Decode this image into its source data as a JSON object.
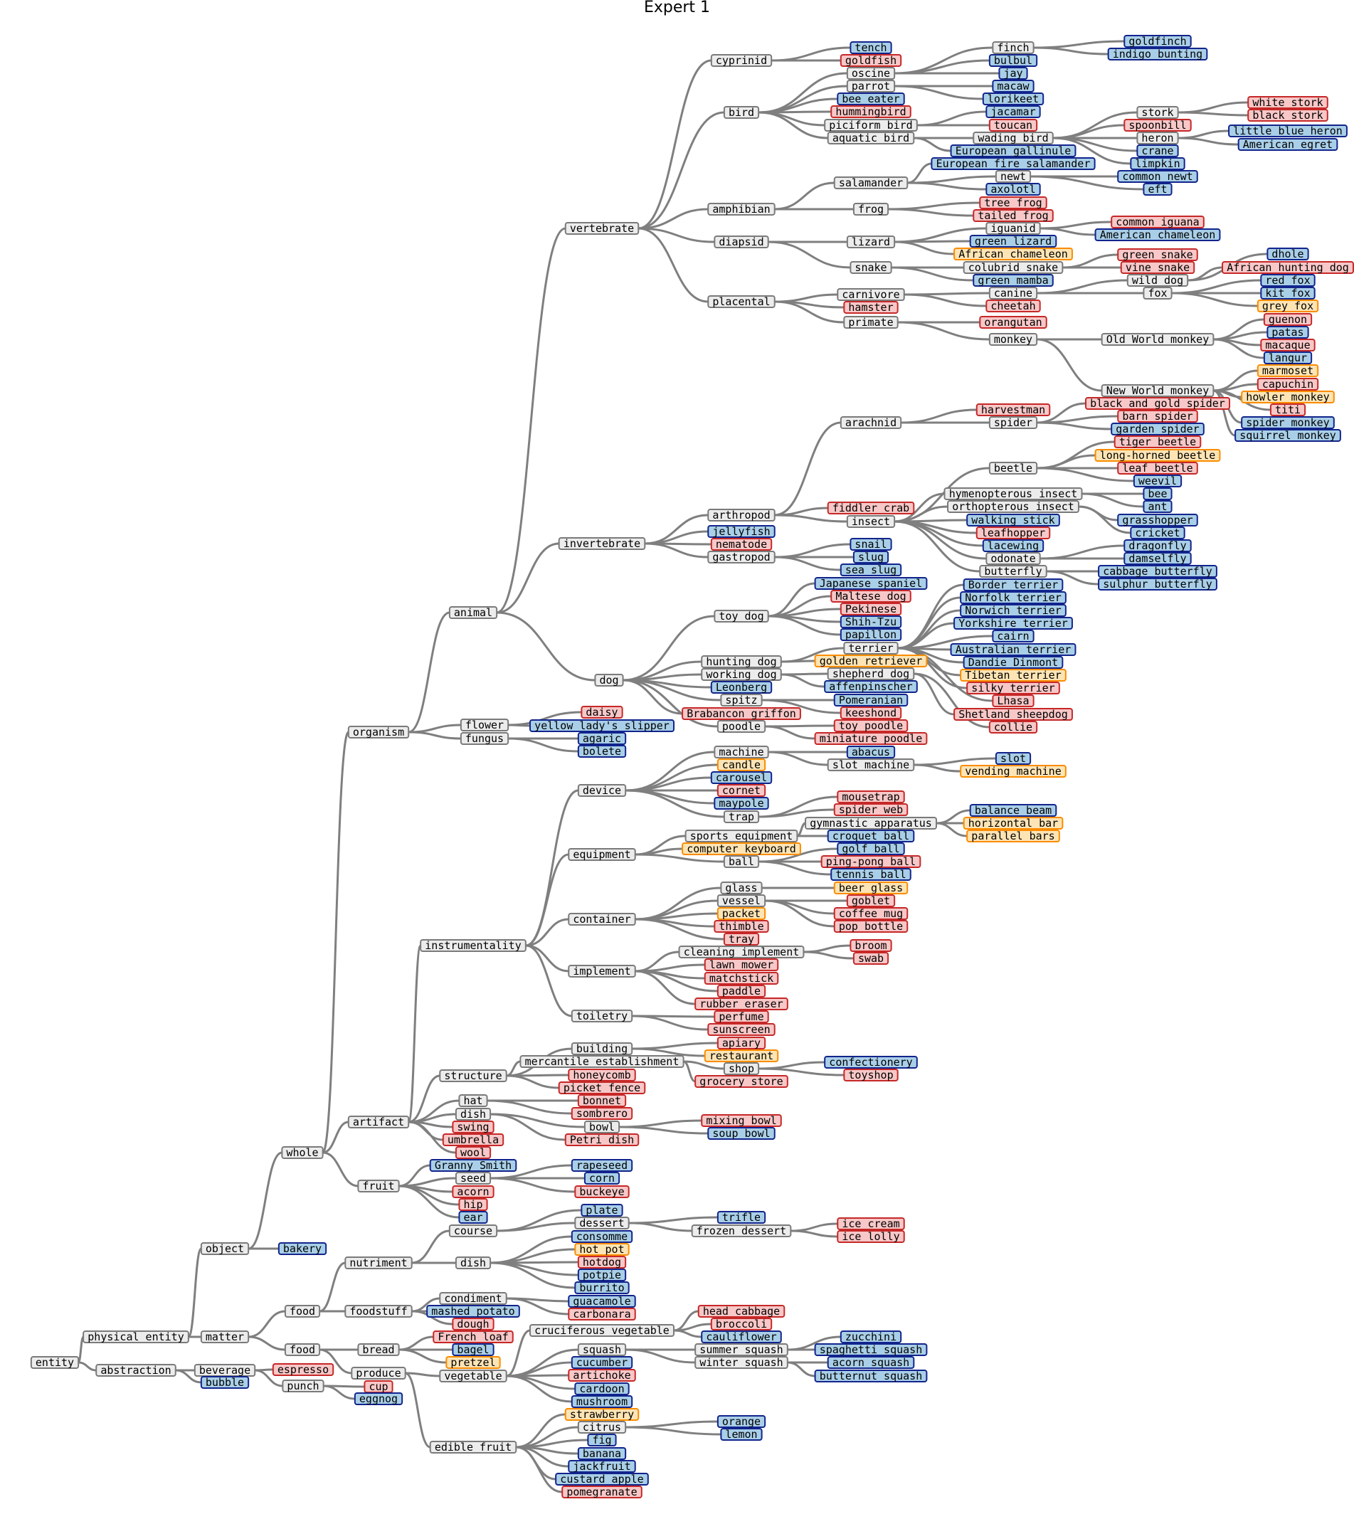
{
  "title": "Expert 1",
  "styles": {
    "internal": {
      "fill": "#ececec",
      "stroke": "#7a7a7a"
    },
    "blue": {
      "fill": "#a9cfe8",
      "stroke": "#12248c"
    },
    "red": {
      "fill": "#f8c7c7",
      "stroke": "#c62828"
    },
    "orange": {
      "fill": "#fde4b4",
      "stroke": "#fb8c00"
    },
    "edge": "#7f7f7f"
  },
  "tree": [
    [
      "entity",
      null,
      "internal"
    ],
    [
      "physical entity",
      "entity",
      "internal"
    ],
    [
      "abstraction",
      "entity",
      "internal"
    ],
    [
      "object",
      "physical entity",
      "internal"
    ],
    [
      "matter",
      "physical entity",
      "internal"
    ],
    [
      "beverage",
      "abstraction",
      "internal"
    ],
    [
      "bubble",
      "abstraction",
      "blue"
    ],
    [
      "whole",
      "object",
      "internal"
    ],
    [
      "bakery",
      "object",
      "blue"
    ],
    [
      "food",
      "matter",
      "internal"
    ],
    [
      "food ",
      "matter",
      "internal"
    ],
    [
      "espresso",
      "beverage",
      "red"
    ],
    [
      "punch",
      "beverage",
      "internal"
    ],
    [
      "organism",
      "whole",
      "internal"
    ],
    [
      "artifact",
      "whole",
      "internal"
    ],
    [
      "fruit",
      "whole",
      "internal"
    ],
    [
      "nutriment",
      "food",
      "internal"
    ],
    [
      "foodstuff",
      "food",
      "internal"
    ],
    [
      "bread",
      "food ",
      "internal"
    ],
    [
      "produce",
      "food ",
      "internal"
    ],
    [
      "cup",
      "punch",
      "red"
    ],
    [
      "eggnog",
      "punch",
      "blue"
    ],
    [
      "animal",
      "organism",
      "internal"
    ],
    [
      "flower",
      "organism",
      "internal"
    ],
    [
      "fungus",
      "organism",
      "internal"
    ],
    [
      "instrumentality",
      "artifact",
      "internal"
    ],
    [
      "structure",
      "artifact",
      "internal"
    ],
    [
      "hat",
      "artifact",
      "internal"
    ],
    [
      "dish",
      "artifact",
      "internal"
    ],
    [
      "swing",
      "artifact",
      "red"
    ],
    [
      "umbrella",
      "artifact",
      "red"
    ],
    [
      "wool",
      "artifact",
      "red"
    ],
    [
      "Granny Smith",
      "fruit",
      "blue"
    ],
    [
      "seed",
      "fruit",
      "internal"
    ],
    [
      "acorn",
      "fruit",
      "red"
    ],
    [
      "hip",
      "fruit",
      "red"
    ],
    [
      "ear",
      "fruit",
      "blue"
    ],
    [
      "course",
      "nutriment",
      "internal"
    ],
    [
      "dish ",
      "nutriment",
      "internal"
    ],
    [
      "condiment",
      "foodstuff",
      "internal"
    ],
    [
      "mashed potato",
      "foodstuff",
      "blue"
    ],
    [
      "dough",
      "foodstuff",
      "red"
    ],
    [
      "French loaf",
      "bread",
      "red"
    ],
    [
      "bagel",
      "bread",
      "blue"
    ],
    [
      "pretzel",
      "bread",
      "orange"
    ],
    [
      "vegetable",
      "produce",
      "internal"
    ],
    [
      "edible fruit",
      "produce",
      "internal"
    ],
    [
      "vertebrate",
      "animal",
      "internal"
    ],
    [
      "invertebrate",
      "animal",
      "internal"
    ],
    [
      "dog",
      "animal",
      "internal"
    ],
    [
      "daisy",
      "flower",
      "red"
    ],
    [
      "yellow lady's slipper",
      "flower",
      "blue"
    ],
    [
      "agaric",
      "fungus",
      "blue"
    ],
    [
      "bolete",
      "fungus",
      "blue"
    ],
    [
      "device",
      "instrumentality",
      "internal"
    ],
    [
      "equipment",
      "instrumentality",
      "internal"
    ],
    [
      "container",
      "instrumentality",
      "internal"
    ],
    [
      "implement",
      "instrumentality",
      "internal"
    ],
    [
      "toiletry",
      "instrumentality",
      "internal"
    ],
    [
      "building",
      "structure",
      "internal"
    ],
    [
      "mercantile establishment",
      "structure",
      "internal"
    ],
    [
      "honeycomb",
      "structure",
      "red"
    ],
    [
      "picket fence",
      "structure",
      "red"
    ],
    [
      "bonnet",
      "hat",
      "red"
    ],
    [
      "sombrero",
      "hat",
      "red"
    ],
    [
      "bowl",
      "dish",
      "internal"
    ],
    [
      "Petri dish",
      "dish",
      "red"
    ],
    [
      "rapeseed",
      "seed",
      "blue"
    ],
    [
      "corn",
      "seed",
      "blue"
    ],
    [
      "buckeye",
      "seed",
      "red"
    ],
    [
      "plate",
      "course",
      "blue"
    ],
    [
      "dessert",
      "course",
      "internal"
    ],
    [
      "consomme",
      "dish ",
      "blue"
    ],
    [
      "hot pot",
      "dish ",
      "orange"
    ],
    [
      "hotdog",
      "dish ",
      "red"
    ],
    [
      "potpie",
      "dish ",
      "blue"
    ],
    [
      "burrito",
      "dish ",
      "blue"
    ],
    [
      "guacamole",
      "condiment",
      "blue"
    ],
    [
      "carbonara",
      "condiment",
      "red"
    ],
    [
      "cruciferous vegetable",
      "vegetable",
      "internal"
    ],
    [
      "squash",
      "vegetable",
      "internal"
    ],
    [
      "cucumber",
      "vegetable",
      "blue"
    ],
    [
      "artichoke",
      "vegetable",
      "red"
    ],
    [
      "cardoon",
      "vegetable",
      "blue"
    ],
    [
      "mushroom",
      "vegetable",
      "blue"
    ],
    [
      "strawberry",
      "edible fruit",
      "orange"
    ],
    [
      "citrus",
      "edible fruit",
      "internal"
    ],
    [
      "fig",
      "edible fruit",
      "blue"
    ],
    [
      "banana",
      "edible fruit",
      "blue"
    ],
    [
      "jackfruit",
      "edible fruit",
      "blue"
    ],
    [
      "custard apple",
      "edible fruit",
      "blue"
    ],
    [
      "pomegranate",
      "edible fruit",
      "red"
    ],
    [
      "cyprinid",
      "vertebrate",
      "internal"
    ],
    [
      "bird",
      "vertebrate",
      "internal"
    ],
    [
      "amphibian",
      "vertebrate",
      "internal"
    ],
    [
      "diapsid",
      "vertebrate",
      "internal"
    ],
    [
      "placental",
      "vertebrate",
      "internal"
    ],
    [
      "arthropod",
      "invertebrate",
      "internal"
    ],
    [
      "jellyfish",
      "invertebrate",
      "blue"
    ],
    [
      "nematode",
      "invertebrate",
      "red"
    ],
    [
      "gastropod",
      "invertebrate",
      "internal"
    ],
    [
      "toy dog",
      "dog",
      "internal"
    ],
    [
      "hunting dog",
      "dog",
      "internal"
    ],
    [
      "working dog",
      "dog",
      "internal"
    ],
    [
      "Leonberg",
      "dog",
      "blue"
    ],
    [
      "spitz",
      "dog",
      "internal"
    ],
    [
      "Brabancon griffon",
      "dog",
      "red"
    ],
    [
      "poodle",
      "dog",
      "internal"
    ],
    [
      "machine",
      "device",
      "internal"
    ],
    [
      "candle",
      "device",
      "orange"
    ],
    [
      "carousel",
      "device",
      "blue"
    ],
    [
      "cornet",
      "device",
      "red"
    ],
    [
      "maypole",
      "device",
      "blue"
    ],
    [
      "trap",
      "device",
      "internal"
    ],
    [
      "sports equipment",
      "equipment",
      "internal"
    ],
    [
      "computer keyboard",
      "equipment",
      "orange"
    ],
    [
      "ball",
      "equipment",
      "internal"
    ],
    [
      "glass",
      "container",
      "internal"
    ],
    [
      "vessel",
      "container",
      "internal"
    ],
    [
      "packet",
      "container",
      "orange"
    ],
    [
      "thimble",
      "container",
      "red"
    ],
    [
      "tray",
      "container",
      "red"
    ],
    [
      "cleaning implement",
      "implement",
      "internal"
    ],
    [
      "lawn mower",
      "implement",
      "red"
    ],
    [
      "matchstick",
      "implement",
      "red"
    ],
    [
      "paddle",
      "implement",
      "red"
    ],
    [
      "rubber eraser",
      "implement",
      "red"
    ],
    [
      "perfume",
      "toiletry",
      "red"
    ],
    [
      "sunscreen",
      "toiletry",
      "red"
    ],
    [
      "apiary",
      "building",
      "red"
    ],
    [
      "restaurant",
      "building",
      "orange"
    ],
    [
      "shop",
      "mercantile establishment",
      "internal"
    ],
    [
      "grocery store",
      "mercantile establishment",
      "red"
    ],
    [
      "mixing bowl",
      "bowl",
      "red"
    ],
    [
      "soup bowl",
      "bowl",
      "blue"
    ],
    [
      "trifle",
      "dessert",
      "blue"
    ],
    [
      "frozen dessert",
      "dessert",
      "internal"
    ],
    [
      "head cabbage",
      "cruciferous vegetable",
      "red"
    ],
    [
      "broccoli",
      "cruciferous vegetable",
      "red"
    ],
    [
      "cauliflower",
      "cruciferous vegetable",
      "blue"
    ],
    [
      "summer squash",
      "squash",
      "internal"
    ],
    [
      "winter squash",
      "squash",
      "internal"
    ],
    [
      "orange",
      "citrus",
      "blue"
    ],
    [
      "lemon",
      "citrus",
      "blue"
    ],
    [
      "tench",
      "cyprinid",
      "blue"
    ],
    [
      "goldfish",
      "cyprinid",
      "red"
    ],
    [
      "oscine",
      "bird",
      "internal"
    ],
    [
      "parrot",
      "bird",
      "internal"
    ],
    [
      "bee eater",
      "bird",
      "blue"
    ],
    [
      "hummingbird",
      "bird",
      "red"
    ],
    [
      "piciform bird",
      "bird",
      "internal"
    ],
    [
      "aquatic bird",
      "bird",
      "internal"
    ],
    [
      "salamander",
      "amphibian",
      "internal"
    ],
    [
      "frog",
      "amphibian",
      "internal"
    ],
    [
      "lizard",
      "diapsid",
      "internal"
    ],
    [
      "snake",
      "diapsid",
      "internal"
    ],
    [
      "carnivore",
      "placental",
      "internal"
    ],
    [
      "hamster",
      "placental",
      "red"
    ],
    [
      "primate",
      "placental",
      "internal"
    ],
    [
      "arachnid",
      "arthropod",
      "internal"
    ],
    [
      "fiddler crab",
      "arthropod",
      "red"
    ],
    [
      "insect",
      "arthropod",
      "internal"
    ],
    [
      "snail",
      "gastropod",
      "blue"
    ],
    [
      "slug",
      "gastropod",
      "blue"
    ],
    [
      "sea slug",
      "gastropod",
      "blue"
    ],
    [
      "Japanese spaniel",
      "toy dog",
      "blue"
    ],
    [
      "Maltese dog",
      "toy dog",
      "red"
    ],
    [
      "Pekinese",
      "toy dog",
      "red"
    ],
    [
      "Shih-Tzu",
      "toy dog",
      "blue"
    ],
    [
      "papillon",
      "toy dog",
      "blue"
    ],
    [
      "terrier",
      "hunting dog",
      "internal"
    ],
    [
      "golden retriever",
      "hunting dog",
      "orange"
    ],
    [
      "shepherd dog",
      "working dog",
      "internal"
    ],
    [
      "affenpinscher",
      "working dog",
      "blue"
    ],
    [
      "Pomeranian",
      "spitz",
      "blue"
    ],
    [
      "keeshond",
      "spitz",
      "red"
    ],
    [
      "toy poodle",
      "poodle",
      "red"
    ],
    [
      "miniature poodle",
      "poodle",
      "red"
    ],
    [
      "abacus",
      "machine",
      "blue"
    ],
    [
      "slot machine",
      "machine",
      "internal"
    ],
    [
      "mousetrap",
      "trap",
      "red"
    ],
    [
      "spider web",
      "trap",
      "red"
    ],
    [
      "gymnastic apparatus",
      "sports equipment",
      "internal"
    ],
    [
      "croquet ball",
      "sports equipment",
      "blue"
    ],
    [
      "golf ball",
      "ball",
      "blue"
    ],
    [
      "ping-pong ball",
      "ball",
      "red"
    ],
    [
      "tennis ball",
      "ball",
      "blue"
    ],
    [
      "beer glass",
      "glass",
      "orange"
    ],
    [
      "goblet",
      "vessel",
      "red"
    ],
    [
      "coffee mug",
      "vessel",
      "red"
    ],
    [
      "pop bottle",
      "vessel",
      "red"
    ],
    [
      "broom",
      "cleaning implement",
      "red"
    ],
    [
      "swab",
      "cleaning implement",
      "red"
    ],
    [
      "confectionery",
      "shop",
      "blue"
    ],
    [
      "toyshop",
      "shop",
      "red"
    ],
    [
      "ice cream",
      "frozen dessert",
      "red"
    ],
    [
      "ice lolly",
      "frozen dessert",
      "red"
    ],
    [
      "zucchini",
      "summer squash",
      "blue"
    ],
    [
      "spaghetti squash",
      "summer squash",
      "blue"
    ],
    [
      "acorn squash",
      "winter squash",
      "blue"
    ],
    [
      "butternut squash",
      "winter squash",
      "blue"
    ],
    [
      "finch",
      "oscine",
      "internal"
    ],
    [
      "bulbul",
      "oscine",
      "blue"
    ],
    [
      "jay",
      "oscine",
      "blue"
    ],
    [
      "macaw",
      "parrot",
      "blue"
    ],
    [
      "lorikeet",
      "parrot",
      "blue"
    ],
    [
      "jacamar",
      "piciform bird",
      "blue"
    ],
    [
      "toucan",
      "piciform bird",
      "red"
    ],
    [
      "wading bird",
      "aquatic bird",
      "internal"
    ],
    [
      "European gallinule",
      "aquatic bird",
      "blue"
    ],
    [
      "European fire salamander",
      "salamander",
      "blue"
    ],
    [
      "newt",
      "salamander",
      "internal"
    ],
    [
      "axolotl",
      "salamander",
      "blue"
    ],
    [
      "tree frog",
      "frog",
      "red"
    ],
    [
      "tailed frog",
      "frog",
      "red"
    ],
    [
      "iguanid",
      "lizard",
      "internal"
    ],
    [
      "green lizard",
      "lizard",
      "blue"
    ],
    [
      "African chameleon",
      "lizard",
      "orange"
    ],
    [
      "colubrid snake",
      "snake",
      "internal"
    ],
    [
      "green mamba",
      "snake",
      "blue"
    ],
    [
      "canine",
      "carnivore",
      "internal"
    ],
    [
      "cheetah",
      "carnivore",
      "red"
    ],
    [
      "orangutan",
      "primate",
      "red"
    ],
    [
      "monkey",
      "primate",
      "internal"
    ],
    [
      "harvestman",
      "arachnid",
      "red"
    ],
    [
      "spider",
      "arachnid",
      "internal"
    ],
    [
      "beetle",
      "insect",
      "internal"
    ],
    [
      "hymenopterous insect",
      "insect",
      "internal"
    ],
    [
      "orthopterous insect",
      "insect",
      "internal"
    ],
    [
      "walking stick",
      "insect",
      "blue"
    ],
    [
      "leafhopper",
      "insect",
      "red"
    ],
    [
      "lacewing",
      "insect",
      "blue"
    ],
    [
      "odonate",
      "insect",
      "internal"
    ],
    [
      "butterfly",
      "insect",
      "internal"
    ],
    [
      "Border terrier",
      "terrier",
      "blue"
    ],
    [
      "Norfolk terrier",
      "terrier",
      "blue"
    ],
    [
      "Norwich terrier",
      "terrier",
      "blue"
    ],
    [
      "Yorkshire terrier",
      "terrier",
      "blue"
    ],
    [
      "cairn",
      "terrier",
      "blue"
    ],
    [
      "Australian terrier",
      "terrier",
      "blue"
    ],
    [
      "Dandie Dinmont",
      "terrier",
      "blue"
    ],
    [
      "Tibetan terrier",
      "terrier",
      "orange"
    ],
    [
      "silky terrier",
      "terrier",
      "red"
    ],
    [
      "Lhasa",
      "terrier",
      "red"
    ],
    [
      "Shetland sheepdog",
      "shepherd dog",
      "red"
    ],
    [
      "collie",
      "shepherd dog",
      "red"
    ],
    [
      "slot",
      "slot machine",
      "blue"
    ],
    [
      "vending machine",
      "slot machine",
      "orange"
    ],
    [
      "balance beam",
      "gymnastic apparatus",
      "blue"
    ],
    [
      "horizontal bar",
      "gymnastic apparatus",
      "orange"
    ],
    [
      "parallel bars",
      "gymnastic apparatus",
      "orange"
    ],
    [
      "goldfinch",
      "finch",
      "blue"
    ],
    [
      "indigo bunting",
      "finch",
      "blue"
    ],
    [
      "stork",
      "wading bird",
      "internal"
    ],
    [
      "spoonbill",
      "wading bird",
      "red"
    ],
    [
      "heron",
      "wading bird",
      "internal"
    ],
    [
      "crane",
      "wading bird",
      "blue"
    ],
    [
      "limpkin",
      "wading bird",
      "blue"
    ],
    [
      "common newt",
      "newt",
      "blue"
    ],
    [
      "eft",
      "newt",
      "blue"
    ],
    [
      "common iguana",
      "iguanid",
      "red"
    ],
    [
      "American chameleon",
      "iguanid",
      "blue"
    ],
    [
      "green snake",
      "colubrid snake",
      "red"
    ],
    [
      "vine snake",
      "colubrid snake",
      "red"
    ],
    [
      "wild dog",
      "canine",
      "internal"
    ],
    [
      "fox",
      "canine",
      "internal"
    ],
    [
      "Old World monkey",
      "monkey",
      "internal"
    ],
    [
      "New World monkey",
      "monkey",
      "internal"
    ],
    [
      "black and gold spider",
      "spider",
      "red"
    ],
    [
      "barn spider",
      "spider",
      "red"
    ],
    [
      "garden spider",
      "spider",
      "blue"
    ],
    [
      "tiger beetle",
      "beetle",
      "red"
    ],
    [
      "long-horned beetle",
      "beetle",
      "orange"
    ],
    [
      "leaf beetle",
      "beetle",
      "red"
    ],
    [
      "weevil",
      "beetle",
      "blue"
    ],
    [
      "bee",
      "hymenopterous insect",
      "blue"
    ],
    [
      "ant",
      "hymenopterous insect",
      "blue"
    ],
    [
      "grasshopper",
      "orthopterous insect",
      "blue"
    ],
    [
      "cricket",
      "orthopterous insect",
      "blue"
    ],
    [
      "dragonfly",
      "odonate",
      "blue"
    ],
    [
      "damselfly",
      "odonate",
      "blue"
    ],
    [
      "cabbage butterfly",
      "butterfly",
      "blue"
    ],
    [
      "sulphur butterfly",
      "butterfly",
      "blue"
    ],
    [
      "white stork",
      "stork",
      "red"
    ],
    [
      "black stork",
      "stork",
      "red"
    ],
    [
      "little blue heron",
      "heron",
      "blue"
    ],
    [
      "American egret",
      "heron",
      "blue"
    ],
    [
      "dhole",
      "wild dog",
      "blue"
    ],
    [
      "African hunting dog",
      "wild dog",
      "red"
    ],
    [
      "red fox",
      "fox",
      "blue"
    ],
    [
      "kit fox",
      "fox",
      "blue"
    ],
    [
      "grey fox",
      "fox",
      "orange"
    ],
    [
      "guenon",
      "Old World monkey",
      "red"
    ],
    [
      "patas",
      "Old World monkey",
      "blue"
    ],
    [
      "macaque",
      "Old World monkey",
      "red"
    ],
    [
      "langur",
      "Old World monkey",
      "blue"
    ],
    [
      "marmoset",
      "New World monkey",
      "orange"
    ],
    [
      "capuchin",
      "New World monkey",
      "red"
    ],
    [
      "howler monkey",
      "New World monkey",
      "orange"
    ],
    [
      "titi",
      "New World monkey",
      "red"
    ],
    [
      "spider monkey",
      "New World monkey",
      "blue"
    ],
    [
      "squirrel monkey",
      "New World monkey",
      "blue"
    ]
  ]
}
